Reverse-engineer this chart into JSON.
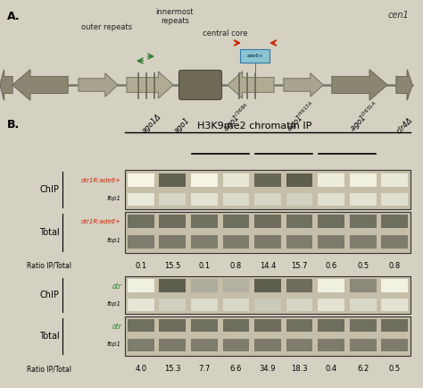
{
  "fig_width": 4.74,
  "fig_height": 4.34,
  "bg_color": "#d4d0c2",
  "panel_A": {
    "label": "A.",
    "cen1_label": "cen1",
    "outer_repeats_label": "outer repeats",
    "innermost_repeats_label": "innermost\nrepeats",
    "central_core_label": "central core",
    "arrow_color": "#9a9680",
    "green_arrow_color": "#2a7a2a",
    "red_arrow_color": "#cc2200"
  },
  "panel_B": {
    "label": "B.",
    "title": "H3K9me2 chromatin IP",
    "chip_label": "ChIP",
    "total_label": "Total",
    "ratio_label": "Ratio IP/Total",
    "top_panel": {
      "chip_gene1": "otr1R:ade6+",
      "chip_gene2": "fbp1",
      "gene1_color": "#cc2200",
      "gene2_color": "#111111",
      "ratios": [
        "0.1",
        "15.5",
        "0.1",
        "0.8",
        "14.4",
        "15.7",
        "0.6",
        "0.5",
        "0.8"
      ]
    },
    "bottom_panel": {
      "chip_gene1": "otr",
      "chip_gene2": "fbp1",
      "gene1_color": "#228822",
      "gene2_color": "#111111",
      "ratios": [
        "4.0",
        "15.3",
        "7.7",
        "6.6",
        "34.9",
        "18.3",
        "0.4",
        "6.2",
        "0.5"
      ]
    }
  }
}
